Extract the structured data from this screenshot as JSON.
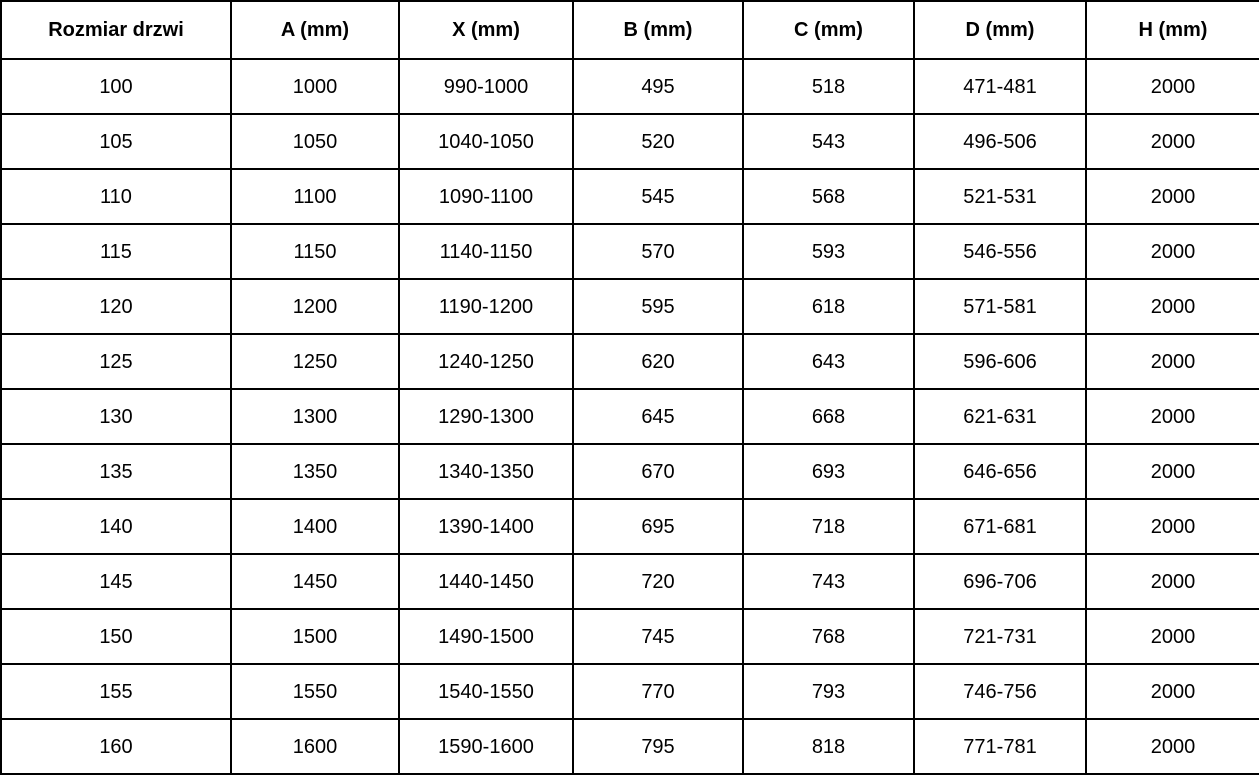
{
  "chart_data": {
    "type": "table",
    "title": "",
    "columns": [
      "Rozmiar drzwi",
      "A (mm)",
      "X (mm)",
      "B (mm)",
      "C (mm)",
      "D (mm)",
      "H (mm)"
    ],
    "rows": [
      [
        "100",
        "1000",
        "990-1000",
        "495",
        "518",
        "471-481",
        "2000"
      ],
      [
        "105",
        "1050",
        "1040-1050",
        "520",
        "543",
        "496-506",
        "2000"
      ],
      [
        "110",
        "1100",
        "1090-1100",
        "545",
        "568",
        "521-531",
        "2000"
      ],
      [
        "115",
        "1150",
        "1140-1150",
        "570",
        "593",
        "546-556",
        "2000"
      ],
      [
        "120",
        "1200",
        "1190-1200",
        "595",
        "618",
        "571-581",
        "2000"
      ],
      [
        "125",
        "1250",
        "1240-1250",
        "620",
        "643",
        "596-606",
        "2000"
      ],
      [
        "130",
        "1300",
        "1290-1300",
        "645",
        "668",
        "621-631",
        "2000"
      ],
      [
        "135",
        "1350",
        "1340-1350",
        "670",
        "693",
        "646-656",
        "2000"
      ],
      [
        "140",
        "1400",
        "1390-1400",
        "695",
        "718",
        "671-681",
        "2000"
      ],
      [
        "145",
        "1450",
        "1440-1450",
        "720",
        "743",
        "696-706",
        "2000"
      ],
      [
        "150",
        "1500",
        "1490-1500",
        "745",
        "768",
        "721-731",
        "2000"
      ],
      [
        "155",
        "1550",
        "1540-1550",
        "770",
        "793",
        "746-756",
        "2000"
      ],
      [
        "160",
        "1600",
        "1590-1600",
        "795",
        "818",
        "771-781",
        "2000"
      ]
    ],
    "layout": {
      "grid": true,
      "border_color": "#000000",
      "background_color": "#ffffff",
      "text_color": "#000000",
      "header_bold": true,
      "text_align": "center"
    }
  }
}
